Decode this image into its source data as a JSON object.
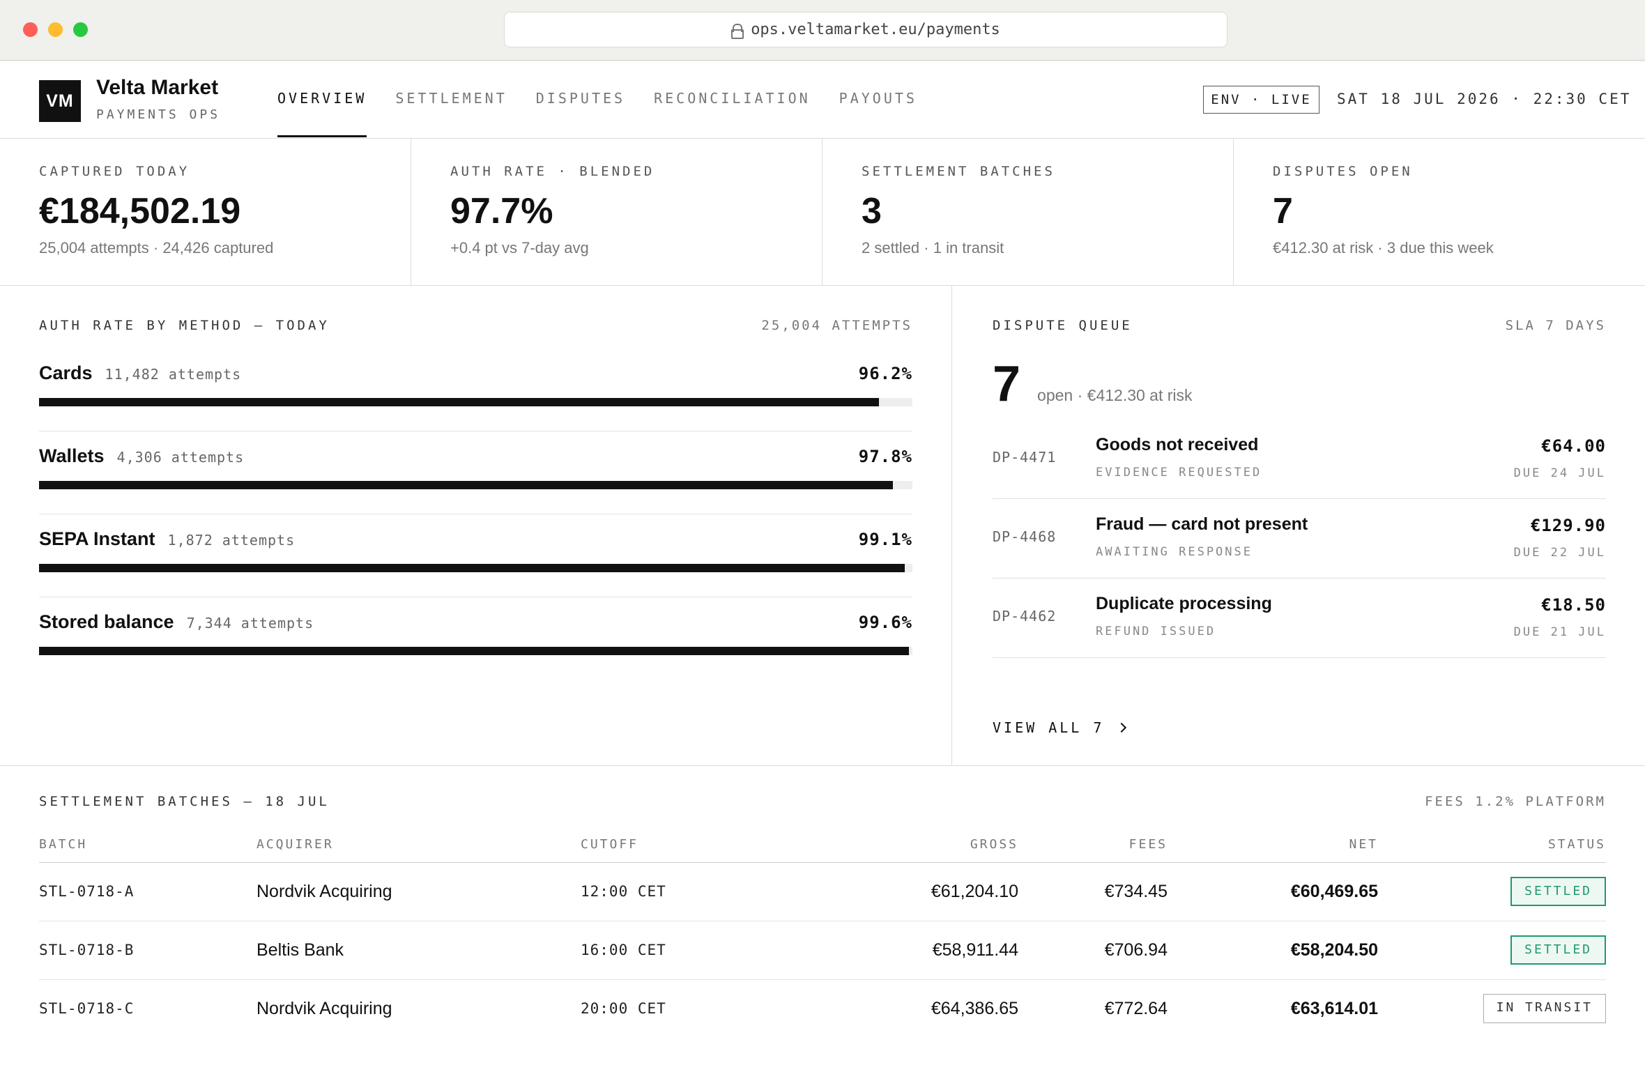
{
  "browser": {
    "url": "ops.veltamarket.eu/payments"
  },
  "header": {
    "logo": "VM",
    "brand": "Velta Market",
    "brand_sub": "PAYMENTS OPS",
    "nav": [
      "OVERVIEW",
      "SETTLEMENT",
      "DISPUTES",
      "RECONCILIATION",
      "PAYOUTS"
    ],
    "env": "ENV · LIVE",
    "clock": "SAT 18 JUL 2026 · 22:30 CET"
  },
  "kpis": [
    {
      "label": "CAPTURED TODAY",
      "value": "€184,502.19",
      "sub": "25,004 attempts · 24,426 captured"
    },
    {
      "label": "AUTH RATE · BLENDED",
      "value": "97.7%",
      "sub": "+0.4 pt vs 7-day avg"
    },
    {
      "label": "SETTLEMENT BATCHES",
      "value": "3",
      "sub": "2 settled · 1 in transit"
    },
    {
      "label": "DISPUTES OPEN",
      "value": "7",
      "sub": "€412.30 at risk · 3 due this week"
    }
  ],
  "auth": {
    "title": "AUTH RATE BY METHOD — TODAY",
    "right": "25,004 ATTEMPTS",
    "methods": [
      {
        "name": "Cards",
        "attempts": "11,482 attempts",
        "rate": "96.2%",
        "value": 96.2
      },
      {
        "name": "Wallets",
        "attempts": "4,306 attempts",
        "rate": "97.8%",
        "value": 97.8
      },
      {
        "name": "SEPA Instant",
        "attempts": "1,872 attempts",
        "rate": "99.1%",
        "value": 99.1
      },
      {
        "name": "Stored balance",
        "attempts": "7,344 attempts",
        "rate": "99.6%",
        "value": 99.6
      }
    ]
  },
  "disputes": {
    "title": "DISPUTE QUEUE",
    "right": "SLA 7 DAYS",
    "count": "7",
    "count_sub": "open · €412.30 at risk",
    "items": [
      {
        "id": "DP-4471",
        "reason": "Goods not received",
        "status": "EVIDENCE REQUESTED",
        "amount": "€64.00",
        "due": "DUE 24 JUL"
      },
      {
        "id": "DP-4468",
        "reason": "Fraud — card not present",
        "status": "AWAITING RESPONSE",
        "amount": "€129.90",
        "due": "DUE 22 JUL"
      },
      {
        "id": "DP-4462",
        "reason": "Duplicate processing",
        "status": "REFUND ISSUED",
        "amount": "€18.50",
        "due": "DUE 21 JUL"
      }
    ],
    "view_all": "VIEW ALL 7"
  },
  "settlement": {
    "title": "SETTLEMENT BATCHES — 18 JUL",
    "right": "FEES 1.2% PLATFORM",
    "columns": [
      "BATCH",
      "ACQUIRER",
      "CUTOFF",
      "GROSS",
      "FEES",
      "NET",
      "STATUS"
    ],
    "rows": [
      {
        "batch": "STL-0718-A",
        "acquirer": "Nordvik Acquiring",
        "cutoff": "12:00 CET",
        "gross": "€61,204.10",
        "fees": "€734.45",
        "net": "€60,469.65",
        "status": "SETTLED"
      },
      {
        "batch": "STL-0718-B",
        "acquirer": "Beltis Bank",
        "cutoff": "16:00 CET",
        "gross": "€58,911.44",
        "fees": "€706.94",
        "net": "€58,204.50",
        "status": "SETTLED"
      },
      {
        "batch": "STL-0718-C",
        "acquirer": "Nordvik Acquiring",
        "cutoff": "20:00 CET",
        "gross": "€64,386.65",
        "fees": "€772.64",
        "net": "€63,614.01",
        "status": "IN TRANSIT"
      }
    ]
  },
  "colors": {
    "settled": "#1f9a6b",
    "accent": "#111111"
  }
}
